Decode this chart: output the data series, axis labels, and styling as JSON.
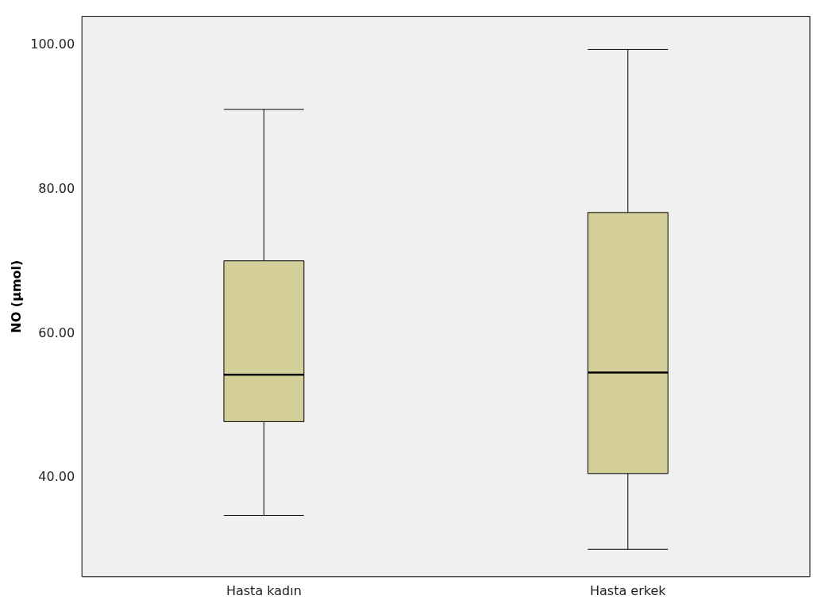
{
  "chart_data": {
    "type": "box",
    "ylabel": "NO (µmol)",
    "categories": [
      "Hasta kadın",
      "Hasta erkek"
    ],
    "color": "#d4cf98",
    "boxes": [
      {
        "low": 34.8,
        "q1": 47.8,
        "median": 54.3,
        "q3": 70.1,
        "high": 91.1
      },
      {
        "low": 30.1,
        "q1": 40.6,
        "median": 54.6,
        "q3": 76.8,
        "high": 99.4
      }
    ],
    "ylim": [
      26.3,
      104
    ],
    "yticks": [
      {
        "value": 40,
        "label": "40.00"
      },
      {
        "value": 60,
        "label": "60.00"
      },
      {
        "value": 80,
        "label": "80.00"
      },
      {
        "value": 100,
        "label": "100.00"
      }
    ]
  }
}
